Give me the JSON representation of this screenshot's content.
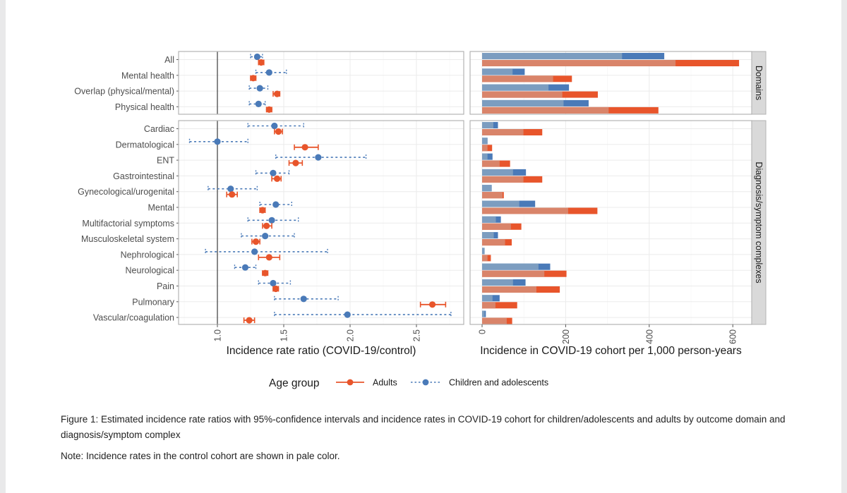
{
  "chart_data": [
    {
      "type": "scatter",
      "subtype": "forest-plot",
      "xlabel": "Incidence rate ratio (COVID-19/control)",
      "xticks": [
        "1.0",
        "1.5",
        "2.0",
        "2.5"
      ],
      "xlim": [
        0.77,
        2.8
      ],
      "reference_line": 1.0,
      "grid": true,
      "panels": [
        {
          "name": "Domains",
          "categories": [
            "All",
            "Mental health",
            "Overlap (physical/mental)",
            "Physical health"
          ],
          "series": [
            {
              "name": "Children and adolescents",
              "estimate": [
                1.3,
                1.39,
                1.32,
                1.31
              ],
              "lower": [
                1.25,
                1.29,
                1.24,
                1.24
              ],
              "upper": [
                1.34,
                1.52,
                1.38,
                1.36
              ]
            },
            {
              "name": "Adults",
              "estimate": [
                1.33,
                1.27,
                1.45,
                1.39
              ],
              "lower": [
                1.31,
                1.25,
                1.42,
                1.37
              ],
              "upper": [
                1.35,
                1.29,
                1.47,
                1.41
              ]
            }
          ]
        },
        {
          "name": "Diagnosis/symptom complexes",
          "categories": [
            "Cardiac",
            "Dermatological",
            "ENT",
            "Gastrointestinal",
            "Gynecological/urogenital",
            "Mental",
            "Multifactorial symptoms",
            "Musculoskeletal system",
            "Nephrological",
            "Neurological",
            "Pain",
            "Pulmonary",
            "Vascular/coagulation"
          ],
          "series": [
            {
              "name": "Children and adolescents",
              "estimate": [
                1.43,
                1.0,
                1.76,
                1.42,
                1.1,
                1.44,
                1.41,
                1.36,
                1.28,
                1.21,
                1.42,
                1.65,
                1.98
              ],
              "lower": [
                1.23,
                0.79,
                1.44,
                1.29,
                0.93,
                1.32,
                1.23,
                1.18,
                0.91,
                1.13,
                1.31,
                1.43,
                1.43
              ],
              "upper": [
                1.65,
                1.23,
                2.12,
                1.54,
                1.3,
                1.56,
                1.61,
                1.58,
                1.83,
                1.29,
                1.55,
                1.91,
                2.76
              ]
            },
            {
              "name": "Adults",
              "estimate": [
                1.46,
                1.66,
                1.59,
                1.45,
                1.11,
                1.34,
                1.37,
                1.29,
                1.39,
                1.36,
                1.44,
                2.62,
                1.24
              ],
              "lower": [
                1.43,
                1.58,
                1.54,
                1.41,
                1.07,
                1.32,
                1.34,
                1.26,
                1.31,
                1.34,
                1.42,
                2.53,
                1.2
              ],
              "upper": [
                1.49,
                1.76,
                1.64,
                1.48,
                1.15,
                1.36,
                1.41,
                1.32,
                1.47,
                1.38,
                1.46,
                2.72,
                1.28
              ]
            }
          ]
        }
      ]
    },
    {
      "type": "bar",
      "orientation": "horizontal",
      "xlabel": "Incidence in COVID-19 cohort per 1,000 person-years",
      "xticks": [
        "0",
        "200",
        "400",
        "600"
      ],
      "xlim": [
        -28,
        645
      ],
      "grid": true,
      "note": "Control cohort shown in pale color, overlaid on COVID-19 cohort bar",
      "panels": [
        {
          "name": "Domains",
          "categories": [
            "All",
            "Mental health",
            "Overlap (physical/mental)",
            "Physical health"
          ],
          "series": [
            {
              "name": "Children and adolescents - COVID-19",
              "values": [
                436,
                102,
                208,
                255
              ]
            },
            {
              "name": "Children and adolescents - control",
              "values": [
                335,
                73,
                159,
                195
              ]
            },
            {
              "name": "Adults - COVID-19",
              "values": [
                615,
                215,
                277,
                422
              ]
            },
            {
              "name": "Adults - control",
              "values": [
                463,
                170,
                192,
                303
              ]
            }
          ]
        },
        {
          "name": "Diagnosis/symptom complexes",
          "categories": [
            "Cardiac",
            "Dermatological",
            "ENT",
            "Gastrointestinal",
            "Gynecological/urogenital",
            "Mental",
            "Multifactorial symptoms",
            "Musculoskeletal system",
            "Nephrological",
            "Neurological",
            "Pain",
            "Pulmonary",
            "Vascular/coagulation"
          ],
          "series": [
            {
              "name": "Children and adolescents - COVID-19",
              "values": [
                38,
                13,
                25,
                105,
                23,
                127,
                45,
                38,
                6,
                163,
                104,
                42,
                9
              ]
            },
            {
              "name": "Children and adolescents - control",
              "values": [
                27,
                13,
                13,
                74,
                23,
                89,
                33,
                28,
                6,
                135,
                74,
                25,
                6
              ]
            },
            {
              "name": "Adults - COVID-19",
              "values": [
                144,
                24,
                67,
                144,
                52,
                276,
                94,
                71,
                21,
                202,
                186,
                84,
                72
              ]
            },
            {
              "name": "Adults - control",
              "values": [
                99,
                13,
                42,
                99,
                49,
                206,
                69,
                55,
                13,
                149,
                130,
                32,
                59
              ]
            }
          ]
        }
      ]
    }
  ],
  "legend": {
    "title": "Age group",
    "items": [
      {
        "label": "Adults",
        "color": "#e8552b",
        "line": "solid"
      },
      {
        "label": "Children and adolescents",
        "color": "#4a7ab8",
        "line": "dotted"
      }
    ],
    "placement": "bottom"
  },
  "colors": {
    "adult": "#e8552b",
    "adult_pale": "#d9846a",
    "child": "#4a7ab8",
    "child_pale": "#7c9dc0",
    "strip": "#d9d9d9",
    "grid": "#ebebeb",
    "border": "#b3b3b3"
  },
  "caption": {
    "figure": "Figure 1: Estimated incidence rate ratios with 95%-confidence intervals and incidence rates in COVID-19 cohort for children/adolescents and adults by outcome domain and diagnosis/symptom complex",
    "note": "Note: Incidence rates in the control cohort are shown in pale color."
  }
}
